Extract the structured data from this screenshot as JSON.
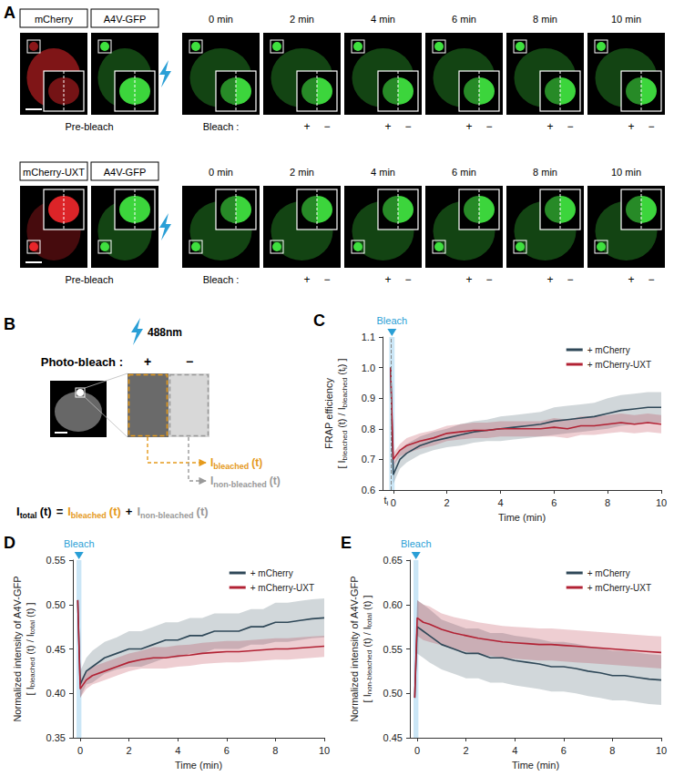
{
  "panel_A": {
    "letter": "A",
    "rows": [
      {
        "channels": [
          "mCherry",
          "A4V-GFP"
        ]
      },
      {
        "channels": [
          "mCherry-UXT",
          "A4V-GFP"
        ]
      }
    ],
    "pre_bleach": "Pre-bleach",
    "times": [
      "0 min",
      "2 min",
      "4 min",
      "6 min",
      "8 min",
      "10 min"
    ],
    "bleach": "Bleach :",
    "plus": "+",
    "minus": "−"
  },
  "panel_B": {
    "letter": "B",
    "laser": "488nm",
    "photo_bleach": "Photo-bleach :",
    "plus": "+",
    "minus": "−",
    "bleached": {
      "symbol": "I",
      "sub": "bleached",
      "arg": "(t)"
    },
    "non_bleached": {
      "symbol": "I",
      "sub": "non-bleached",
      "arg": "(t)"
    },
    "total": {
      "symbol": "I",
      "sub": "total",
      "arg": "(t)"
    },
    "equals": "=",
    "sum": "+"
  },
  "chart_data": [
    {
      "letter": "C",
      "type": "line",
      "x_label": "Time (min)",
      "y_label": {
        "title": "FRAP efficiency",
        "formula": [
          {
            "text": "[ I"
          },
          {
            "sub": "bleached"
          },
          {
            "text": " (t) / I"
          },
          {
            "sub": "bleached"
          },
          {
            "text": " (t"
          },
          {
            "sub": "i"
          },
          {
            "text": ") ]"
          }
        ]
      },
      "x": [
        -0.1,
        0,
        0.25,
        0.5,
        1,
        1.5,
        2,
        2.5,
        3,
        3.5,
        4,
        4.5,
        5,
        5.5,
        6,
        6.5,
        7,
        7.5,
        8,
        8.5,
        9,
        9.5,
        10
      ],
      "series": [
        {
          "name": "+ mCherry",
          "color": "#2f4858",
          "values": [
            1.0,
            0.65,
            0.7,
            0.72,
            0.745,
            0.76,
            0.77,
            0.78,
            0.79,
            0.795,
            0.8,
            0.805,
            0.81,
            0.815,
            0.825,
            0.83,
            0.835,
            0.84,
            0.85,
            0.86,
            0.865,
            0.87,
            0.87
          ],
          "errors": [
            0,
            0.03,
            0.03,
            0.03,
            0.03,
            0.03,
            0.03,
            0.035,
            0.035,
            0.035,
            0.04,
            0.04,
            0.04,
            0.04,
            0.045,
            0.045,
            0.045,
            0.045,
            0.05,
            0.05,
            0.05,
            0.05,
            0.05
          ]
        },
        {
          "name": "+ mCherry-UXT",
          "color": "#b22234",
          "values": [
            1.0,
            0.7,
            0.73,
            0.745,
            0.76,
            0.77,
            0.785,
            0.79,
            0.795,
            0.795,
            0.8,
            0.8,
            0.8,
            0.8,
            0.805,
            0.8,
            0.81,
            0.81,
            0.815,
            0.82,
            0.815,
            0.82,
            0.815
          ],
          "errors": [
            0,
            0.02,
            0.02,
            0.025,
            0.025,
            0.025,
            0.025,
            0.025,
            0.025,
            0.025,
            0.025,
            0.025,
            0.025,
            0.025,
            0.03,
            0.03,
            0.03,
            0.03,
            0.03,
            0.03,
            0.03,
            0.03,
            0.03
          ]
        }
      ],
      "xlim": [
        -0.4,
        10
      ],
      "xticks": [
        0,
        2,
        4,
        6,
        8,
        10
      ],
      "ylim": [
        0.6,
        1.1
      ],
      "yticks": [
        0.6,
        0.7,
        0.8,
        0.9,
        {
          "value": 1,
          "label": "1.0"
        },
        1.1
      ],
      "bleach": {
        "label": "Bleach",
        "x": [
          -0.15,
          0.05
        ]
      },
      "ti": {
        "x": -0.1,
        "symbol": "t",
        "sub": "i"
      },
      "legend": "top-right",
      "grid": false
    },
    {
      "letter": "D",
      "type": "line",
      "x_label": "Time (min)",
      "y_label": {
        "title": "Normalized intensity of A4V-GFP",
        "formula": [
          {
            "text": "[ I"
          },
          {
            "sub": "bleached"
          },
          {
            "text": " (t) / I"
          },
          {
            "sub": "total"
          },
          {
            "text": " (t) ]"
          }
        ]
      },
      "x": [
        -0.1,
        0,
        0.25,
        0.5,
        1,
        1.5,
        2,
        2.5,
        3,
        3.5,
        4,
        4.5,
        5,
        5.5,
        6,
        6.5,
        7,
        7.5,
        8,
        8.5,
        9,
        9.5,
        10
      ],
      "series": [
        {
          "name": "+ mCherry",
          "color": "#2f4858",
          "values": [
            0.505,
            0.41,
            0.425,
            0.43,
            0.44,
            0.445,
            0.45,
            0.45,
            0.455,
            0.46,
            0.46,
            0.465,
            0.465,
            0.47,
            0.47,
            0.47,
            0.475,
            0.475,
            0.48,
            0.48,
            0.482,
            0.484,
            0.485
          ],
          "errors": [
            0,
            0.015,
            0.015,
            0.018,
            0.018,
            0.018,
            0.02,
            0.02,
            0.02,
            0.02,
            0.02,
            0.02,
            0.02,
            0.02,
            0.02,
            0.02,
            0.02,
            0.02,
            0.022,
            0.022,
            0.022,
            0.022,
            0.022
          ]
        },
        {
          "name": "+ mCherry-UXT",
          "color": "#b22234",
          "values": [
            0.505,
            0.405,
            0.415,
            0.42,
            0.425,
            0.43,
            0.435,
            0.438,
            0.44,
            0.44,
            0.442,
            0.443,
            0.445,
            0.446,
            0.447,
            0.447,
            0.448,
            0.449,
            0.45,
            0.45,
            0.451,
            0.452,
            0.453
          ],
          "errors": [
            0,
            0.01,
            0.01,
            0.01,
            0.01,
            0.01,
            0.01,
            0.01,
            0.012,
            0.012,
            0.012,
            0.012,
            0.012,
            0.012,
            0.012,
            0.012,
            0.012,
            0.012,
            0.012,
            0.012,
            0.012,
            0.012,
            0.012
          ]
        }
      ],
      "xlim": [
        -0.3,
        10
      ],
      "xticks": [
        0,
        2,
        4,
        6,
        8,
        10
      ],
      "ylim": [
        0.35,
        0.55
      ],
      "yticks": [
        0.35,
        {
          "value": 0.4,
          "label": "0.40"
        },
        0.45,
        {
          "value": 0.5,
          "label": "0.50"
        },
        0.55
      ],
      "bleach": {
        "label": "Bleach",
        "x": [
          -0.15,
          0.05
        ]
      },
      "legend": "top-right",
      "grid": false
    },
    {
      "letter": "E",
      "type": "line",
      "x_label": "Time (min)",
      "y_label": {
        "title": "Normalized intensity of A4V-GFP",
        "formula": [
          {
            "text": "[ I"
          },
          {
            "sub": "non-bleached"
          },
          {
            "text": " (t) / I"
          },
          {
            "sub": "total"
          },
          {
            "text": " (t) ]"
          }
        ]
      },
      "x": [
        -0.1,
        0,
        0.25,
        0.5,
        1,
        1.5,
        2,
        2.5,
        3,
        3.5,
        4,
        4.5,
        5,
        5.5,
        6,
        6.5,
        7,
        7.5,
        8,
        8.5,
        9,
        9.5,
        10
      ],
      "series": [
        {
          "name": "+ mCherry",
          "color": "#2f4858",
          "values": [
            0.495,
            0.575,
            0.57,
            0.565,
            0.555,
            0.55,
            0.545,
            0.545,
            0.54,
            0.54,
            0.537,
            0.535,
            0.533,
            0.53,
            0.53,
            0.528,
            0.525,
            0.523,
            0.52,
            0.52,
            0.518,
            0.516,
            0.515
          ],
          "errors": [
            0,
            0.03,
            0.03,
            0.03,
            0.028,
            0.028,
            0.028,
            0.028,
            0.028,
            0.028,
            0.028,
            0.028,
            0.028,
            0.028,
            0.028,
            0.028,
            0.028,
            0.028,
            0.028,
            0.028,
            0.028,
            0.028,
            0.028
          ]
        },
        {
          "name": "+ mCherry-UXT",
          "color": "#b22234",
          "values": [
            0.495,
            0.585,
            0.58,
            0.578,
            0.572,
            0.568,
            0.565,
            0.562,
            0.56,
            0.558,
            0.557,
            0.556,
            0.555,
            0.555,
            0.554,
            0.553,
            0.552,
            0.551,
            0.55,
            0.549,
            0.548,
            0.547,
            0.546
          ],
          "errors": [
            0,
            0.02,
            0.02,
            0.02,
            0.018,
            0.018,
            0.018,
            0.018,
            0.018,
            0.018,
            0.018,
            0.018,
            0.018,
            0.018,
            0.018,
            0.018,
            0.018,
            0.018,
            0.018,
            0.018,
            0.018,
            0.018,
            0.018
          ]
        }
      ],
      "xlim": [
        -0.3,
        10
      ],
      "xticks": [
        0,
        2,
        4,
        6,
        8,
        10
      ],
      "ylim": [
        0.45,
        0.65
      ],
      "yticks": [
        0.45,
        {
          "value": 0.5,
          "label": "0.50"
        },
        0.55,
        {
          "value": 0.6,
          "label": "0.60"
        },
        0.65
      ],
      "bleach": {
        "label": "Bleach",
        "x": [
          -0.15,
          0.05
        ]
      },
      "legend": "top-right",
      "grid": false
    }
  ]
}
